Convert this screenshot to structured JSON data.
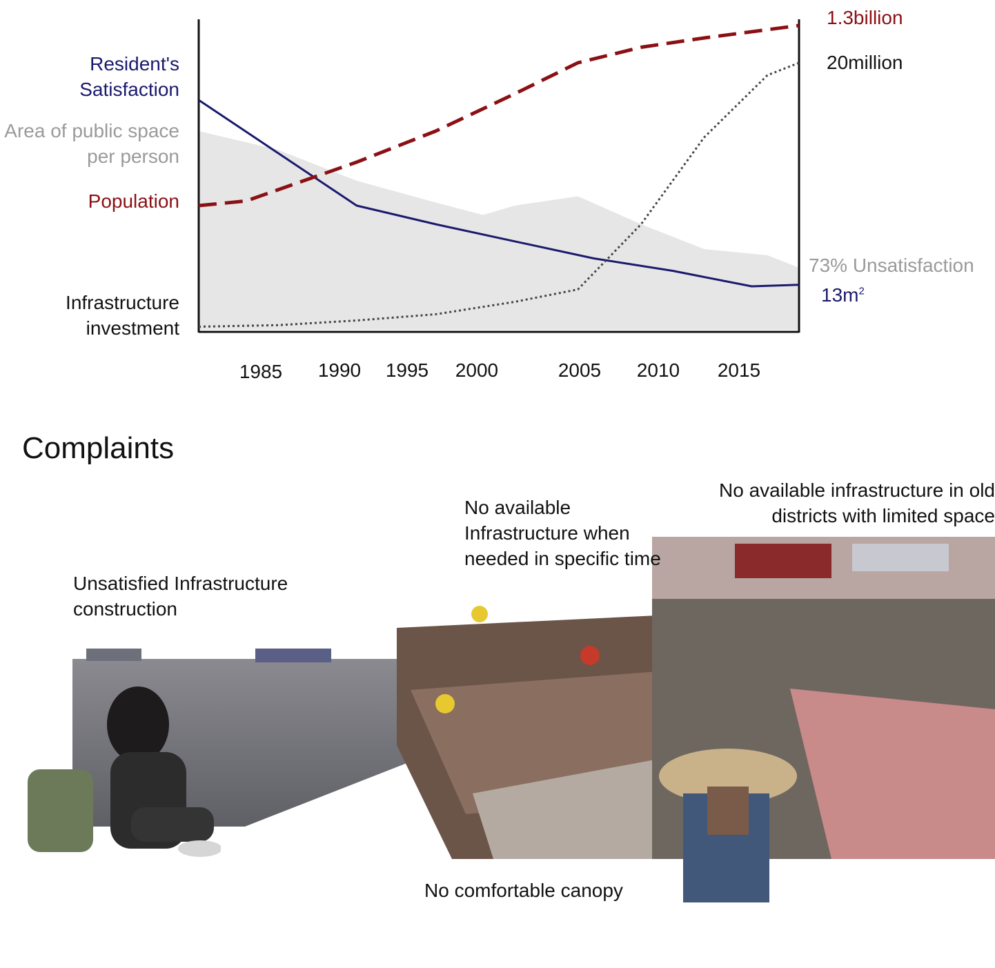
{
  "chart_data": {
    "type": "line",
    "title": "",
    "xlabel": "",
    "ylabel": "",
    "x_tick_labels": [
      "1985",
      "1990",
      "1995",
      "2000",
      "2005",
      "2010",
      "2015"
    ],
    "xlim": [
      1980,
      2018
    ],
    "ylim": [
      0,
      100
    ],
    "grid": false,
    "series": [
      {
        "name": "Resident's Satisfaction",
        "style": "solid",
        "color": "#1a1a6e",
        "end_label": "13m",
        "end_label_sup": "2",
        "x": [
          1980,
          1990,
          1995,
          2000,
          2005,
          2010,
          2015,
          2018
        ],
        "y": [
          74,
          40,
          34,
          28.5,
          23,
          19,
          14,
          14.5
        ]
      },
      {
        "name": "Area of public space per person",
        "style": "area",
        "color": "#e6e6e6",
        "end_label": "73% Unsatisfaction",
        "x": [
          1980,
          1985,
          1990,
          1995,
          1998,
          2000,
          2004,
          2008,
          2012,
          2016,
          2018
        ],
        "y": [
          64,
          58,
          48,
          41,
          37,
          40,
          43,
          34,
          26,
          24,
          20
        ]
      },
      {
        "name": "Population",
        "style": "dashed",
        "color": "#8b1014",
        "end_label": "1.3billion",
        "x": [
          1980,
          1983,
          1990,
          1995,
          2000,
          2004,
          2008,
          2012,
          2015,
          2018
        ],
        "y": [
          40,
          41.5,
          54,
          64,
          76,
          86,
          91,
          94,
          96,
          98
        ]
      },
      {
        "name": "Infrastructure investment",
        "style": "dotted",
        "color": "#444444",
        "end_label": "20million",
        "x": [
          1980,
          1985,
          1990,
          1995,
          2000,
          2004,
          2008,
          2012,
          2016,
          2018
        ],
        "y": [
          1,
          1.5,
          3,
          5,
          9,
          13,
          34,
          62,
          82,
          86
        ]
      }
    ]
  },
  "complaints": {
    "title": "Complaints",
    "notes": {
      "construction": "Unsatisfied Infrastructure construction",
      "specific_time": "No available Infrastructure when needed in specific time",
      "old_districts": "No available infrastructure in old districts with limited space",
      "canopy": "No comfortable canopy"
    }
  },
  "colors": {
    "axis": "#111111",
    "satisfaction": "#1a1a6e",
    "population": "#8b1014",
    "area_label": "#9a9a9a",
    "infrastructure": "#111111"
  }
}
